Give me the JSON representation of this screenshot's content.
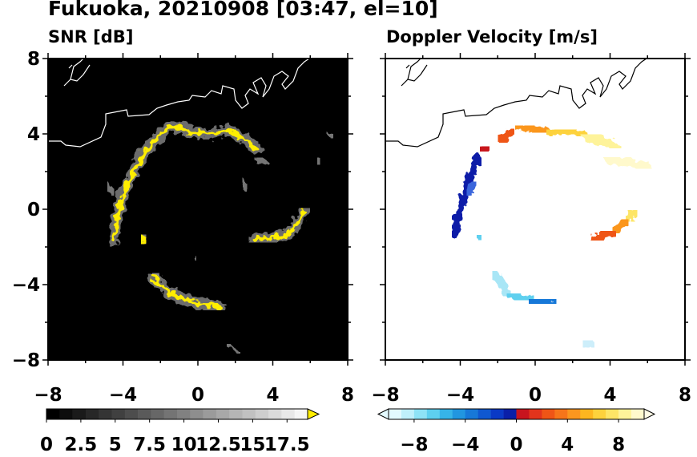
{
  "page_title": "Fukuoka, 20210908 [03:47, el=10]",
  "chart_data": [
    {
      "type": "heatmap",
      "title": "SNR [dB]",
      "xlim": [
        -8,
        8
      ],
      "ylim": [
        -8,
        8
      ],
      "xticks": [
        "−8",
        "−4",
        "0",
        "4",
        "8"
      ],
      "yticks": [
        "8",
        "4",
        "0",
        "−4",
        "−8"
      ],
      "background": "#000000",
      "colorbar": {
        "levels": 20,
        "range": [
          0,
          19
        ],
        "ticks": [
          "0",
          "2.5",
          "5",
          "7.5",
          "10",
          "12.5",
          "15",
          "17.5"
        ],
        "tick_values": [
          0,
          2.5,
          5,
          7.5,
          10,
          12.5,
          15,
          17.5
        ],
        "extend": "max",
        "colors": {
          "low": "#000000",
          "high": "#f5f5f5",
          "over": "#ffee00"
        }
      },
      "echo_color": "#ffee00",
      "echo_paths": [
        [
          [
            -4.5,
            -1.6
          ],
          [
            -4.3,
            -0.5
          ],
          [
            -4.1,
            0.5
          ],
          [
            -3.7,
            1.5
          ],
          [
            -3.3,
            2.3
          ],
          [
            -2.9,
            2.9
          ],
          [
            -2.3,
            3.7
          ],
          [
            -1.6,
            4.3
          ],
          [
            -1.0,
            4.4
          ],
          [
            -0.4,
            4.1
          ],
          [
            0.6,
            4.0
          ],
          [
            1.6,
            4.2
          ],
          [
            2.4,
            3.8
          ],
          [
            3.1,
            3.2
          ]
        ],
        [
          [
            5.7,
            -0.1
          ],
          [
            5.3,
            -0.8
          ],
          [
            4.7,
            -1.4
          ],
          [
            3.9,
            -1.5
          ],
          [
            3.0,
            -1.6
          ]
        ],
        [
          [
            -3.0,
            -1.4
          ],
          [
            -2.8,
            -1.8
          ]
        ],
        [
          [
            -2.4,
            -3.6
          ],
          [
            -1.6,
            -4.4
          ],
          [
            -0.4,
            -4.9
          ],
          [
            0.6,
            -5.1
          ],
          [
            1.2,
            -5.2
          ]
        ]
      ],
      "gray_paths": [
        [
          [
            -4.5,
            0.8
          ],
          [
            -4.8,
            1.4
          ]
        ],
        [
          [
            -2.1,
            -3.5
          ],
          [
            -2.4,
            -3.4
          ]
        ],
        [
          [
            3.1,
            2.7
          ],
          [
            3.8,
            2.4
          ]
        ],
        [
          [
            2.4,
            1.6
          ],
          [
            2.6,
            1.0
          ]
        ],
        [
          [
            7.2,
            3.8
          ],
          [
            6.9,
            4.1
          ]
        ],
        [
          [
            6.4,
            2.7
          ],
          [
            6.5,
            2.4
          ]
        ],
        [
          [
            1.6,
            -7.2
          ],
          [
            2.2,
            -7.6
          ]
        ],
        [
          [
            -0.2,
            -2.5
          ],
          [
            -0.1,
            -2.7
          ]
        ],
        [
          [
            0.6,
            4.8
          ],
          [
            1.0,
            4.8
          ]
        ]
      ]
    },
    {
      "type": "heatmap",
      "title": "Doppler Velocity [m/s]",
      "xlim": [
        -8,
        8
      ],
      "ylim": [
        -8,
        8
      ],
      "xticks": [
        "−8",
        "−4",
        "0",
        "4",
        "8"
      ],
      "yticks": [
        "8",
        "4",
        "0",
        "−4",
        "−8"
      ],
      "background": "#ffffff",
      "colorbar": {
        "levels": 20,
        "range": [
          -10,
          10
        ],
        "ticks": [
          "−8",
          "−4",
          "0",
          "4",
          "8"
        ],
        "tick_values": [
          -8,
          -4,
          0,
          4,
          8
        ],
        "extend": "both",
        "colors": [
          "#e3faff",
          "#bff0fb",
          "#8ee3f6",
          "#5ed0ef",
          "#36b4e8",
          "#2196e0",
          "#1778d8",
          "#0f58d0",
          "#0a39c6",
          "#0a1fa8",
          "#c8141e",
          "#e2341c",
          "#ef5516",
          "#f6751a",
          "#fb961f",
          "#fdb61f",
          "#fdd23c",
          "#fde566",
          "#fef39a",
          "#fff9cc",
          "#fffce6"
        ]
      },
      "echo_paths": [
        {
          "color": "#0a1fa8",
          "points": [
            [
              -4.3,
              -1.3
            ],
            [
              -4.1,
              -0.4
            ],
            [
              -3.9,
              0.3
            ],
            [
              -3.7,
              1.1
            ],
            [
              -3.4,
              2.0
            ],
            [
              -3.0,
              2.7
            ]
          ]
        },
        {
          "color": "#3a66dc",
          "points": [
            [
              -3.6,
              0.8
            ],
            [
              -3.2,
              1.4
            ]
          ]
        },
        {
          "color": "#c8141e",
          "points": [
            [
              -2.9,
              3.1
            ],
            [
              -2.5,
              3.3
            ]
          ]
        },
        {
          "color": "#ef5516",
          "points": [
            [
              -1.9,
              3.6
            ],
            [
              -1.2,
              4.2
            ]
          ]
        },
        {
          "color": "#fb961f",
          "points": [
            [
              -0.9,
              4.4
            ],
            [
              -0.1,
              4.2
            ],
            [
              0.8,
              4.1
            ]
          ]
        },
        {
          "color": "#fdd23c",
          "points": [
            [
              0.8,
              4.1
            ],
            [
              1.8,
              4.2
            ],
            [
              2.6,
              3.9
            ]
          ]
        },
        {
          "color": "#fef39a",
          "points": [
            [
              2.6,
              3.9
            ],
            [
              3.6,
              3.6
            ],
            [
              4.4,
              3.3
            ]
          ]
        },
        {
          "color": "#fff9cc",
          "points": [
            [
              3.8,
              2.7
            ],
            [
              5.0,
              2.5
            ],
            [
              6.0,
              2.2
            ]
          ]
        },
        {
          "color": "#fde566",
          "points": [
            [
              5.4,
              -0.1
            ],
            [
              4.9,
              -0.6
            ]
          ]
        },
        {
          "color": "#fb961f",
          "points": [
            [
              4.9,
              -0.6
            ],
            [
              4.2,
              -1.2
            ]
          ]
        },
        {
          "color": "#ef5516",
          "points": [
            [
              4.2,
              -1.2
            ],
            [
              3.1,
              -1.6
            ]
          ]
        },
        {
          "color": "#5ed0ef",
          "points": [
            [
              -3.1,
              -1.4
            ],
            [
              -2.9,
              -1.6
            ]
          ]
        },
        {
          "color": "#a8e6f6",
          "points": [
            [
              -2.2,
              -3.4
            ],
            [
              -1.4,
              -4.5
            ]
          ]
        },
        {
          "color": "#5ed0ef",
          "points": [
            [
              -1.4,
              -4.5
            ],
            [
              -0.2,
              -4.8
            ]
          ]
        },
        {
          "color": "#1778d8",
          "points": [
            [
              -0.2,
              -4.8
            ],
            [
              1.0,
              -5.0
            ]
          ]
        },
        {
          "color": "#cdeefa",
          "points": [
            [
              2.6,
              -7.0
            ],
            [
              3.1,
              -7.3
            ]
          ]
        }
      ]
    }
  ]
}
